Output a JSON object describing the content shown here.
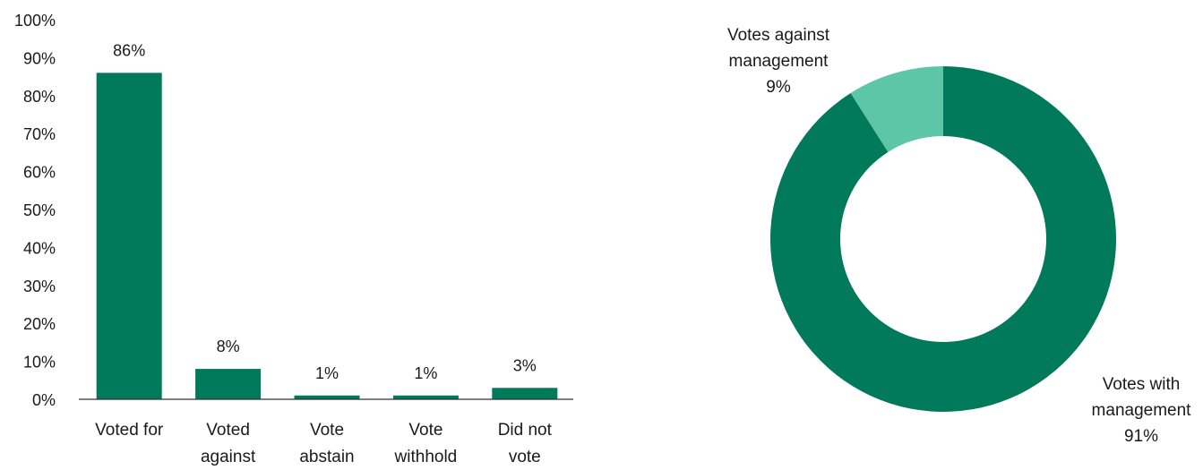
{
  "chart_data": [
    {
      "type": "bar",
      "categories": [
        [
          "Voted for"
        ],
        [
          "Voted",
          "against"
        ],
        [
          "Vote",
          "abstain"
        ],
        [
          "Vote",
          "withhold"
        ],
        [
          "Did not",
          "vote"
        ]
      ],
      "values": [
        86,
        8,
        1,
        1,
        3
      ],
      "value_labels": [
        "86%",
        "8%",
        "1%",
        "1%",
        "3%"
      ],
      "ylim": [
        0,
        100
      ],
      "yticks": [
        0,
        10,
        20,
        30,
        40,
        50,
        60,
        70,
        80,
        90,
        100
      ],
      "ytick_labels": [
        "0%",
        "10%",
        "20%",
        "30%",
        "40%",
        "50%",
        "60%",
        "70%",
        "80%",
        "90%",
        "100%"
      ],
      "color": "#007a5a",
      "grid": false
    },
    {
      "type": "pie",
      "style": "donut",
      "slices": [
        {
          "label_lines": [
            "Votes against",
            "management",
            "9%"
          ],
          "value": 9,
          "color": "#5cc6a6"
        },
        {
          "label_lines": [
            "Votes with",
            "management",
            "91%"
          ],
          "value": 91,
          "color": "#007a5a"
        }
      ]
    }
  ]
}
